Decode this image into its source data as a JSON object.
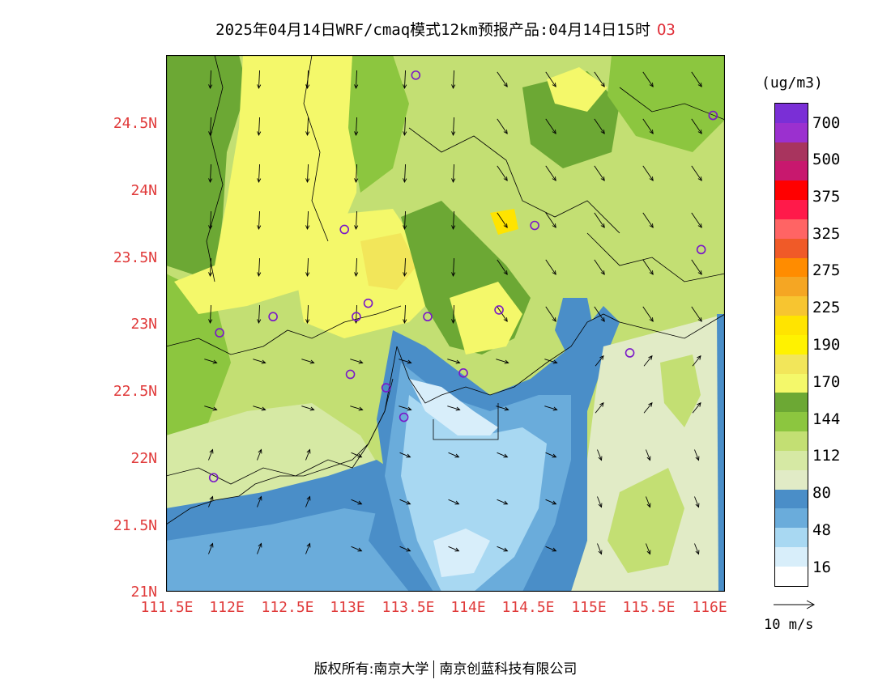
{
  "title": {
    "text": "2025年04月14日WRF/cmaq模式12km预报产品:04月14日15时",
    "species": "O3",
    "species_color": "#e0303a"
  },
  "axes": {
    "lat_labels": [
      "24.5N",
      "24N",
      "23.5N",
      "23N",
      "22.5N",
      "22N",
      "21.5N",
      "21N"
    ],
    "lon_labels": [
      "111.5E",
      "112E",
      "112.5E",
      "113E",
      "113.5E",
      "114E",
      "114.5E",
      "115E",
      "115.5E",
      "116E"
    ],
    "label_color": "#e03a3a",
    "lat_range": [
      21,
      25
    ],
    "lon_range": [
      111.5,
      116.2
    ]
  },
  "legend": {
    "units": "(ug/m3)",
    "labels": [
      "700",
      "500",
      "375",
      "325",
      "275",
      "225",
      "190",
      "170",
      "144",
      "112",
      "80",
      "48",
      "16"
    ],
    "colors": [
      "#7a2fd6",
      "#9b30cf",
      "#a8345e",
      "#c8186e",
      "#ff0000",
      "#ff1a4a",
      "#ff6464",
      "#f05a28",
      "#ff8c00",
      "#f5a623",
      "#f7c530",
      "#ffe400",
      "#fff200",
      "#f2e65a",
      "#f4f86a",
      "#6ca834",
      "#8cc63f",
      "#c3df73",
      "#d6e9a4",
      "#e1ebc6",
      "#4a8ec8",
      "#6aacdb",
      "#a8d8f2",
      "#d8eefa",
      "#ffffff"
    ]
  },
  "vector": {
    "label": "10 m/s"
  },
  "stations": [
    [
      113.6,
      24.85
    ],
    [
      116.1,
      24.55
    ],
    [
      113.0,
      23.7
    ],
    [
      114.6,
      23.73
    ],
    [
      116.0,
      23.55
    ],
    [
      112.4,
      23.05
    ],
    [
      111.95,
      22.93
    ],
    [
      113.1,
      23.05
    ],
    [
      113.2,
      23.15
    ],
    [
      113.7,
      23.05
    ],
    [
      114.3,
      23.1
    ],
    [
      115.4,
      22.78
    ],
    [
      113.05,
      22.62
    ],
    [
      113.35,
      22.52
    ],
    [
      114.0,
      22.63
    ],
    [
      113.5,
      22.3
    ],
    [
      111.9,
      21.85
    ]
  ],
  "footer": {
    "left": "版权所有:南京大学",
    "right": "南京创蓝科技有限公司"
  }
}
